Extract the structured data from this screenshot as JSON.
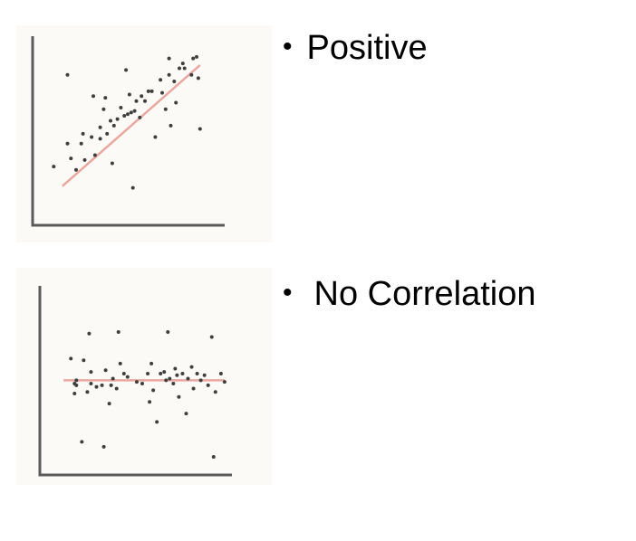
{
  "bullets": [
    {
      "label": "Positive"
    },
    {
      "label": "No Correlation"
    }
  ],
  "bullet_symbol": "•",
  "colors": {
    "axis": "#5a5a5a",
    "points": "#3f3f3f",
    "trend_line": "#e8a8a0",
    "panel_background": "#fcfaf7"
  },
  "chart_data": [
    {
      "type": "scatter",
      "title": "",
      "xlabel": "",
      "ylabel": "",
      "grid": false,
      "xlim": [
        0,
        100
      ],
      "ylim": [
        0,
        100
      ],
      "points": [
        [
          7,
          27
        ],
        [
          15,
          83
        ],
        [
          15,
          41
        ],
        [
          17,
          32
        ],
        [
          20,
          25
        ],
        [
          23,
          41
        ],
        [
          24,
          47
        ],
        [
          25,
          31
        ],
        [
          29,
          45
        ],
        [
          30,
          70
        ],
        [
          31,
          34
        ],
        [
          34,
          44
        ],
        [
          34,
          51
        ],
        [
          36,
          62
        ],
        [
          37,
          69
        ],
        [
          38,
          47
        ],
        [
          40,
          55
        ],
        [
          41,
          29
        ],
        [
          42,
          52
        ],
        [
          44,
          56
        ],
        [
          46,
          63
        ],
        [
          48,
          58
        ],
        [
          49,
          86
        ],
        [
          50,
          59
        ],
        [
          51,
          71
        ],
        [
          52,
          60
        ],
        [
          53,
          14
        ],
        [
          54,
          61
        ],
        [
          55,
          67
        ],
        [
          57,
          57
        ],
        [
          58,
          70
        ],
        [
          60,
          67
        ],
        [
          62,
          73
        ],
        [
          64,
          73
        ],
        [
          66,
          45
        ],
        [
          69,
          80
        ],
        [
          70,
          72
        ],
        [
          72,
          62
        ],
        [
          74,
          83
        ],
        [
          74,
          93
        ],
        [
          75,
          52
        ],
        [
          77,
          79
        ],
        [
          78,
          66
        ],
        [
          80,
          87
        ],
        [
          82,
          90
        ],
        [
          83,
          87
        ],
        [
          87,
          83
        ],
        [
          88,
          93
        ],
        [
          90,
          94
        ],
        [
          91,
          81
        ],
        [
          92,
          50
        ]
      ],
      "trend_line": [
        [
          12,
          15
        ],
        [
          92,
          89
        ]
      ]
    },
    {
      "type": "scatter",
      "title": "",
      "xlabel": "",
      "ylabel": "",
      "grid": false,
      "xlim": [
        0,
        100
      ],
      "ylim": [
        0,
        100
      ],
      "points": [
        [
          11,
          65
        ],
        [
          13,
          50
        ],
        [
          13,
          44
        ],
        [
          14,
          52
        ],
        [
          14,
          49
        ],
        [
          17,
          15
        ],
        [
          18,
          64
        ],
        [
          20,
          45
        ],
        [
          21,
          80
        ],
        [
          22,
          57
        ],
        [
          22,
          50
        ],
        [
          25,
          48
        ],
        [
          28,
          49
        ],
        [
          29,
          12
        ],
        [
          30,
          58
        ],
        [
          32,
          38
        ],
        [
          33,
          49
        ],
        [
          34,
          53
        ],
        [
          36,
          47
        ],
        [
          37,
          81
        ],
        [
          38,
          62
        ],
        [
          40,
          56
        ],
        [
          42,
          54
        ],
        [
          47,
          51
        ],
        [
          50,
          50
        ],
        [
          53,
          56
        ],
        [
          54,
          39
        ],
        [
          55,
          62
        ],
        [
          56,
          46
        ],
        [
          58,
          27
        ],
        [
          60,
          56
        ],
        [
          62,
          57
        ],
        [
          63,
          52
        ],
        [
          64,
          81
        ],
        [
          65,
          53
        ],
        [
          67,
          50
        ],
        [
          68,
          59
        ],
        [
          69,
          55
        ],
        [
          70,
          42
        ],
        [
          72,
          56
        ],
        [
          74,
          32
        ],
        [
          75,
          53
        ],
        [
          77,
          60
        ],
        [
          78,
          47
        ],
        [
          80,
          56
        ],
        [
          82,
          52
        ],
        [
          84,
          55
        ],
        [
          86,
          49
        ],
        [
          88,
          78
        ],
        [
          89,
          6
        ],
        [
          90,
          45
        ],
        [
          93,
          56
        ],
        [
          95,
          51
        ]
      ],
      "trend_line": [
        [
          7,
          52
        ],
        [
          95,
          52
        ]
      ]
    }
  ]
}
